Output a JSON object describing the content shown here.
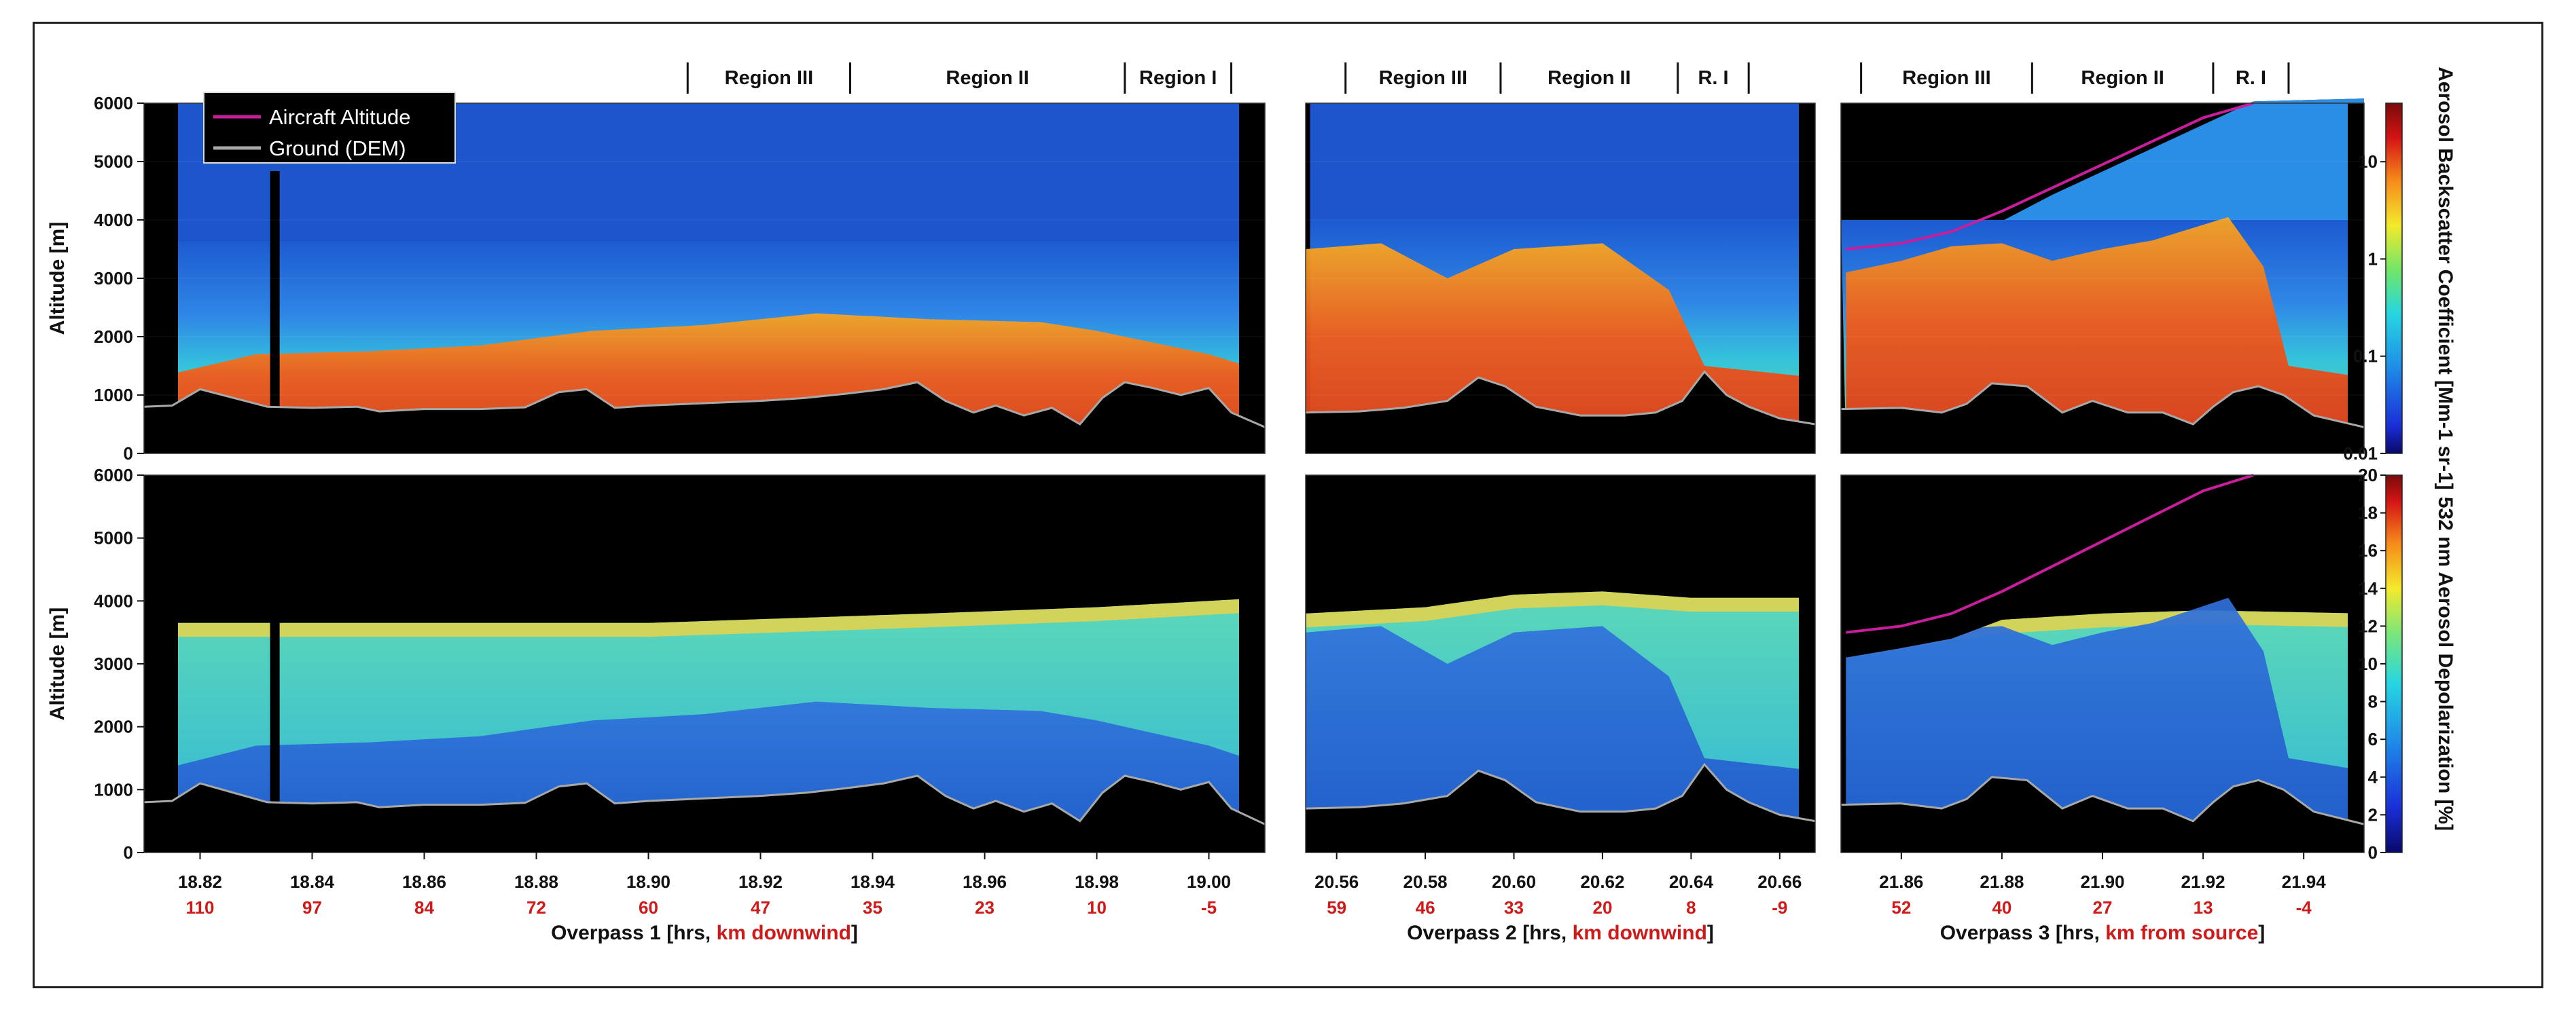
{
  "chart_data": {
    "type": "heatmap",
    "title": "",
    "y_axis": {
      "label": "Altitude [m]",
      "range": [
        0,
        6000
      ],
      "ticks": [
        "0",
        "1000",
        "2000",
        "3000",
        "4000",
        "5000",
        "6000"
      ]
    },
    "rows": [
      {
        "variable": "Aerosol Backscatter Coefficient",
        "colorbar_label": "Aerosol Backscatter Coefficient [Mm-1 sr-1]",
        "scale": "log",
        "range": [
          0.01,
          40
        ],
        "colorbar_ticks": [
          "10",
          "1",
          "0.1",
          "0.01"
        ]
      },
      {
        "variable": "532 nm Aerosol Depolarization",
        "colorbar_label": "532 nm Aerosol Depolarization [%]",
        "scale": "linear",
        "range": [
          0,
          20
        ],
        "colorbar_ticks": [
          "20",
          "18",
          "16",
          "14",
          "12",
          "10",
          "8",
          "6",
          "4",
          "2",
          "0"
        ]
      }
    ],
    "overpasses": [
      {
        "xlabel_prefix": "Overpass 1 [hrs, ",
        "xlabel_red": "km downwind",
        "xlabel_suffix": "]",
        "time_range": [
          18.81,
          19.01
        ],
        "time_ticks": [
          18.82,
          18.84,
          18.86,
          18.88,
          18.9,
          18.92,
          18.94,
          18.96,
          18.98,
          19.0
        ],
        "time_tick_labels": [
          "18.82",
          "18.84",
          "18.86",
          "18.88",
          "18.90",
          "18.92",
          "18.94",
          "18.96",
          "18.98",
          "19.00"
        ],
        "distance_labels": [
          "110",
          "97",
          "84",
          "72",
          "60",
          "47",
          "35",
          "23",
          "10",
          "-5"
        ],
        "regions": [
          {
            "label": "Region III",
            "start": 18.907,
            "end": 18.936
          },
          {
            "label": "Region II",
            "start": 18.936,
            "end": 18.985
          },
          {
            "label": "Region I",
            "start": 18.985,
            "end": 19.004
          }
        ],
        "ground_profile": [
          [
            18.81,
            800
          ],
          [
            18.815,
            820
          ],
          [
            18.82,
            1100
          ],
          [
            18.826,
            950
          ],
          [
            18.832,
            800
          ],
          [
            18.84,
            780
          ],
          [
            18.848,
            800
          ],
          [
            18.852,
            720
          ],
          [
            18.86,
            760
          ],
          [
            18.87,
            760
          ],
          [
            18.878,
            790
          ],
          [
            18.884,
            1050
          ],
          [
            18.889,
            1100
          ],
          [
            18.894,
            780
          ],
          [
            18.9,
            820
          ],
          [
            18.91,
            860
          ],
          [
            18.92,
            900
          ],
          [
            18.928,
            950
          ],
          [
            18.935,
            1020
          ],
          [
            18.942,
            1100
          ],
          [
            18.948,
            1220
          ],
          [
            18.953,
            900
          ],
          [
            18.958,
            700
          ],
          [
            18.962,
            820
          ],
          [
            18.967,
            650
          ],
          [
            18.972,
            780
          ],
          [
            18.977,
            500
          ],
          [
            18.981,
            950
          ],
          [
            18.985,
            1220
          ],
          [
            18.99,
            1120
          ],
          [
            18.995,
            1000
          ],
          [
            19.0,
            1120
          ],
          [
            19.004,
            700
          ],
          [
            19.01,
            450
          ]
        ],
        "aircraft_altitude": [],
        "top_cutoff": [
          [
            18.81,
            3650
          ],
          [
            19.01,
            3650
          ]
        ],
        "depolarization_layer_top": [
          [
            18.81,
            3650
          ],
          [
            18.85,
            3650
          ],
          [
            18.9,
            3650
          ],
          [
            18.95,
            3800
          ],
          [
            18.98,
            3900
          ],
          [
            19.01,
            4050
          ]
        ],
        "smoke_top": [
          [
            18.81,
            1250
          ],
          [
            18.83,
            1700
          ],
          [
            18.85,
            1750
          ],
          [
            18.87,
            1850
          ],
          [
            18.89,
            2100
          ],
          [
            18.91,
            2200
          ],
          [
            18.93,
            2400
          ],
          [
            18.95,
            2300
          ],
          [
            18.97,
            2250
          ],
          [
            18.98,
            2100
          ],
          [
            19.0,
            1700
          ],
          [
            19.01,
            1400
          ]
        ]
      },
      {
        "xlabel_prefix": "Overpass 2 [hrs, ",
        "xlabel_red": "km downwind",
        "xlabel_suffix": "]",
        "time_range": [
          20.553,
          20.668
        ],
        "time_ticks": [
          20.56,
          20.58,
          20.6,
          20.62,
          20.64,
          20.66
        ],
        "time_tick_labels": [
          "20.56",
          "20.58",
          "20.60",
          "20.62",
          "20.64",
          "20.66"
        ],
        "distance_labels": [
          "59",
          "46",
          "33",
          "20",
          "8",
          "-9"
        ],
        "regions": [
          {
            "label": "Region III",
            "start": 20.562,
            "end": 20.597
          },
          {
            "label": "Region II",
            "start": 20.597,
            "end": 20.637
          },
          {
            "label": "R. I",
            "start": 20.637,
            "end": 20.653
          }
        ],
        "ground_profile": [
          [
            20.553,
            700
          ],
          [
            20.565,
            720
          ],
          [
            20.575,
            780
          ],
          [
            20.585,
            900
          ],
          [
            20.592,
            1300
          ],
          [
            20.598,
            1150
          ],
          [
            20.605,
            800
          ],
          [
            20.615,
            650
          ],
          [
            20.625,
            650
          ],
          [
            20.632,
            700
          ],
          [
            20.638,
            900
          ],
          [
            20.643,
            1400
          ],
          [
            20.648,
            1000
          ],
          [
            20.653,
            800
          ],
          [
            20.66,
            600
          ],
          [
            20.668,
            500
          ]
        ],
        "aircraft_altitude": [],
        "top_cutoff": [
          [
            20.553,
            4000
          ],
          [
            20.668,
            4000
          ]
        ],
        "depolarization_layer_top": [
          [
            20.553,
            3800
          ],
          [
            20.58,
            3900
          ],
          [
            20.6,
            4100
          ],
          [
            20.62,
            4150
          ],
          [
            20.64,
            4050
          ],
          [
            20.668,
            4050
          ]
        ],
        "smoke_top": [
          [
            20.553,
            3500
          ],
          [
            20.57,
            3600
          ],
          [
            20.585,
            3000
          ],
          [
            20.6,
            3500
          ],
          [
            20.62,
            3600
          ],
          [
            20.635,
            2800
          ],
          [
            20.643,
            1500
          ],
          [
            20.668,
            1300
          ]
        ]
      },
      {
        "xlabel_prefix": "Overpass 3 [hrs, ",
        "xlabel_red": "km from source",
        "xlabel_suffix": "]",
        "time_range": [
          21.848,
          21.952
        ],
        "time_ticks": [
          21.86,
          21.88,
          21.9,
          21.92,
          21.94
        ],
        "time_tick_labels": [
          "21.86",
          "21.88",
          "21.90",
          "21.92",
          "21.94"
        ],
        "distance_labels": [
          "52",
          "40",
          "27",
          "13",
          "-4"
        ],
        "regions": [
          {
            "label": "Region III",
            "start": 21.852,
            "end": 21.886
          },
          {
            "label": "Region II",
            "start": 21.886,
            "end": 21.922
          },
          {
            "label": "R. I",
            "start": 21.922,
            "end": 21.937
          }
        ],
        "ground_profile": [
          [
            21.848,
            760
          ],
          [
            21.86,
            780
          ],
          [
            21.868,
            700
          ],
          [
            21.873,
            850
          ],
          [
            21.878,
            1200
          ],
          [
            21.885,
            1150
          ],
          [
            21.892,
            700
          ],
          [
            21.898,
            900
          ],
          [
            21.905,
            700
          ],
          [
            21.912,
            700
          ],
          [
            21.918,
            500
          ],
          [
            21.922,
            800
          ],
          [
            21.926,
            1050
          ],
          [
            21.931,
            1150
          ],
          [
            21.936,
            1000
          ],
          [
            21.942,
            650
          ],
          [
            21.952,
            450
          ]
        ],
        "aircraft_altitude": [
          [
            21.849,
            3500
          ],
          [
            21.86,
            3600
          ],
          [
            21.87,
            3800
          ],
          [
            21.88,
            4150
          ],
          [
            21.89,
            4550
          ],
          [
            21.9,
            4950
          ],
          [
            21.91,
            5350
          ],
          [
            21.92,
            5750
          ],
          [
            21.93,
            6000
          ]
        ],
        "top_cutoff": [
          [
            21.849,
            3300
          ],
          [
            21.86,
            3450
          ],
          [
            21.87,
            3600
          ],
          [
            21.88,
            3900
          ],
          [
            21.89,
            4350
          ],
          [
            21.9,
            4750
          ],
          [
            21.91,
            5150
          ],
          [
            21.92,
            5550
          ],
          [
            21.93,
            5950
          ],
          [
            21.952,
            6000
          ]
        ],
        "depolarization_layer_top": [
          [
            21.849,
            3300
          ],
          [
            21.86,
            3450
          ],
          [
            21.87,
            3600
          ],
          [
            21.88,
            3700
          ],
          [
            21.9,
            3800
          ],
          [
            21.92,
            3850
          ],
          [
            21.952,
            3800
          ]
        ],
        "smoke_top": [
          [
            21.849,
            3100
          ],
          [
            21.86,
            3300
          ],
          [
            21.87,
            3550
          ],
          [
            21.88,
            3600
          ],
          [
            21.89,
            3300
          ],
          [
            21.9,
            3500
          ],
          [
            21.91,
            3650
          ],
          [
            21.925,
            4050
          ],
          [
            21.932,
            3200
          ],
          [
            21.937,
            1500
          ],
          [
            21.952,
            1300
          ]
        ]
      }
    ],
    "legend": {
      "items": [
        {
          "label": "Aircraft Altitude",
          "color": "#c81e9c"
        },
        {
          "label": "Ground (DEM)",
          "color": "#a8a8a8"
        }
      ]
    },
    "colors": {
      "background": "#000000",
      "aircraft": "#c81e9c",
      "ground": "#a8a8a8",
      "distance_text": "#d01a1a"
    }
  }
}
